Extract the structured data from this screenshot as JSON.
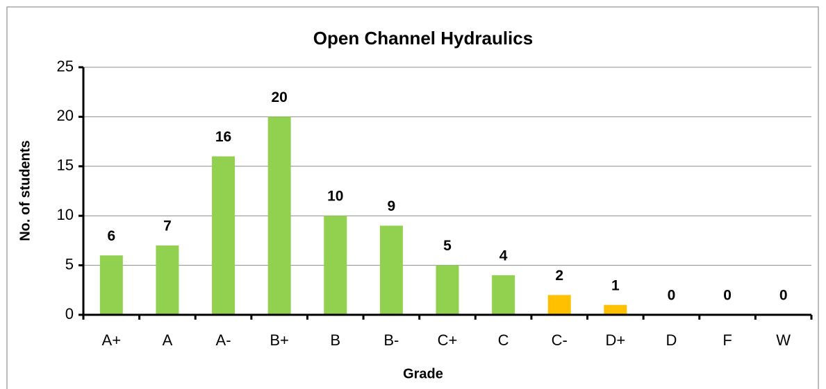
{
  "chart_data": {
    "type": "bar",
    "title": "Open Channel Hydraulics",
    "x_label": "Grade",
    "y_label": "No. of students",
    "categories": [
      "A+",
      "A",
      "A-",
      "B+",
      "B",
      "B-",
      "C+",
      "C",
      "C-",
      "D+",
      "D",
      "F",
      "W"
    ],
    "values": [
      6,
      7,
      16,
      20,
      10,
      9,
      5,
      4,
      2,
      1,
      0,
      0,
      0
    ],
    "colors": [
      "#92d050",
      "#92d050",
      "#92d050",
      "#92d050",
      "#92d050",
      "#92d050",
      "#92d050",
      "#92d050",
      "#ffc000",
      "#ffc000",
      "#ffc000",
      "#ffc000",
      "#ffc000"
    ],
    "ylim": [
      0,
      25
    ],
    "yticks": [
      0,
      5,
      10,
      15,
      20,
      25
    ],
    "grid": true
  }
}
